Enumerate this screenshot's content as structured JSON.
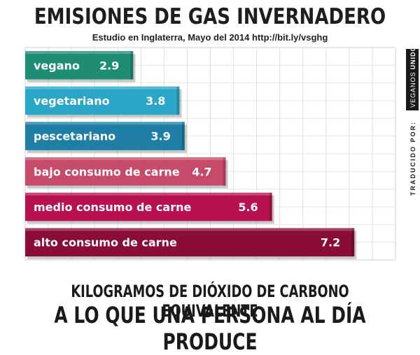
{
  "header": {
    "title": "EMISIONES DE GAS INVERNADERO",
    "subtitle": "Estudio en Inglaterra, Mayo del 2014 http://bit.ly/vsghg"
  },
  "credit": {
    "prefix": "TRADUCIDO POR:",
    "brand_light": "VEGANOS",
    "brand_bold": "UNIDOS"
  },
  "footer": {
    "line1": "KILOGRAMOS DE DIÓXIDO DE CARBONO EQUIVALENTE",
    "line2": "A LO QUE UNA PERSONA AL DÍA PRODUCE"
  },
  "chart_data": {
    "type": "bar",
    "orientation": "horizontal",
    "title": "EMISIONES DE GAS INVERNADERO",
    "categories": [
      "vegano",
      "vegetariano",
      "pescetariano",
      "bajo consumo de carne",
      "medio consumo de carne",
      "alto consumo de carne"
    ],
    "values": [
      2.9,
      3.8,
      3.9,
      4.7,
      5.6,
      7.2
    ],
    "value_labels": [
      "2.9",
      "3.8",
      "3.9",
      "4.7",
      "5.6",
      "7.2"
    ],
    "colors": [
      "#1e8e73",
      "#2aa6c9",
      "#1e7ea6",
      "#c84a6a",
      "#b8114f",
      "#8a0d36"
    ],
    "xlim": [
      0.8,
      8.0
    ],
    "grid": true,
    "legend": "none"
  }
}
